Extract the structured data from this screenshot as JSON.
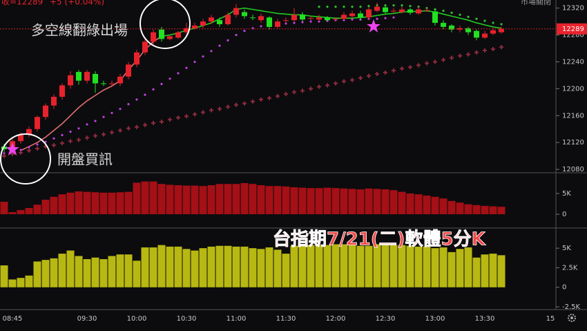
{
  "chart_data": [
    {
      "type": "candlestick",
      "quote": "收=12289",
      "change": "+5 (+0.04%)",
      "status": "市場關閉",
      "up_color": "#e8222c",
      "down_color": "#22e022",
      "last_price": 12289,
      "last_price_color": "#e8222c",
      "annotations": [
        "多空線翻綠出場",
        "開盤買訊"
      ],
      "ylim": [
        12075,
        12332
      ],
      "yticks": [
        12080,
        12120,
        12160,
        12200,
        12240,
        12280,
        12320
      ],
      "open": [
        12114,
        12112,
        12122,
        12132,
        12140,
        12158,
        12175,
        12188,
        12205,
        12225,
        12212,
        12222,
        12208,
        12207,
        12208,
        12218,
        12236,
        12254,
        12270,
        12288,
        12274,
        12276,
        12284,
        12290,
        12294,
        12300,
        12302,
        12296,
        12310,
        12314,
        12306,
        12302,
        12306,
        12292,
        12301,
        12302,
        12310,
        12304,
        12303,
        12306,
        12303,
        12304,
        12308,
        12312,
        12306,
        12316,
        12321,
        12315,
        12314,
        12318,
        12312,
        12316,
        12315,
        12298,
        12294,
        12288,
        12290,
        12286,
        12276,
        12282,
        12284
      ],
      "high": [
        12118,
        12126,
        12135,
        12144,
        12160,
        12178,
        12192,
        12208,
        12226,
        12228,
        12228,
        12226,
        12212,
        12212,
        12222,
        12240,
        12258,
        12274,
        12288,
        12292,
        12280,
        12286,
        12298,
        12298,
        12304,
        12310,
        12306,
        12314,
        12326,
        12318,
        12310,
        12312,
        12308,
        12304,
        12306,
        12320,
        12314,
        12308,
        12310,
        12308,
        12306,
        12314,
        12316,
        12316,
        12322,
        12328,
        12324,
        12320,
        12322,
        12320,
        12322,
        12320,
        12318,
        12302,
        12296,
        12294,
        12292,
        12288,
        12286,
        12290,
        12292
      ],
      "low": [
        12106,
        12108,
        12118,
        12128,
        12136,
        12154,
        12170,
        12184,
        12200,
        12206,
        12208,
        12194,
        12204,
        12204,
        12204,
        12214,
        12232,
        12250,
        12266,
        12270,
        12272,
        12274,
        12280,
        12288,
        12290,
        12296,
        12292,
        12294,
        12306,
        12304,
        12302,
        12298,
        12288,
        12290,
        12298,
        12300,
        12300,
        12302,
        12300,
        12300,
        12300,
        12302,
        12304,
        12302,
        12302,
        12314,
        12312,
        12312,
        12312,
        12310,
        12310,
        12314,
        12294,
        12288,
        12284,
        12284,
        12280,
        12272,
        12274,
        12280,
        12282
      ],
      "close": [
        12110,
        12122,
        12132,
        12140,
        12158,
        12175,
        12188,
        12205,
        12220,
        12212,
        12225,
        12208,
        12207,
        12208,
        12218,
        12236,
        12254,
        12270,
        12284,
        12274,
        12278,
        12284,
        12290,
        12294,
        12300,
        12306,
        12296,
        12310,
        12320,
        12308,
        12305,
        12308,
        12292,
        12300,
        12302,
        12310,
        12303,
        12305,
        12306,
        12302,
        12304,
        12310,
        12312,
        12306,
        12318,
        12322,
        12314,
        12316,
        12318,
        12313,
        12318,
        12317,
        12298,
        12292,
        12288,
        12290,
        12284,
        12276,
        12282,
        12287,
        12289
      ],
      "series": [
        {
          "style": "line",
          "color": "#e07070",
          "values": [
            null,
            null,
            12108,
            12114,
            12120,
            12128,
            12138,
            12148,
            12160,
            12172,
            12182,
            12190,
            12198,
            12204,
            12212,
            12228,
            12242,
            12258,
            12270,
            12278,
            null,
            null,
            null,
            null,
            null,
            null,
            null,
            null,
            null,
            null,
            null,
            null,
            null,
            null,
            null,
            null,
            null,
            null,
            null,
            null,
            null,
            null,
            null,
            null,
            null,
            null,
            null,
            null,
            null,
            null,
            null,
            null,
            null,
            null,
            null,
            null,
            null,
            null,
            null,
            null,
            null
          ]
        },
        {
          "style": "line",
          "color": "#22cc22",
          "values": [
            null,
            null,
            null,
            null,
            null,
            null,
            null,
            null,
            null,
            null,
            null,
            null,
            null,
            null,
            null,
            null,
            null,
            null,
            null,
            12278,
            12280,
            12283,
            12287,
            12290,
            12294,
            12298,
            12304,
            12310,
            12318,
            12320,
            12318,
            12316,
            12314,
            12312,
            12311,
            12310,
            12310,
            12308,
            12307,
            12306,
            12305,
            12305,
            12305,
            12306,
            12307,
            12309,
            12311,
            12312,
            12314,
            12315,
            12315,
            12316,
            12314,
            12311,
            12308,
            12305,
            12302,
            12298,
            12295,
            12292,
            12290
          ]
        },
        {
          "style": "dots",
          "color": "#c040e0",
          "values": [
            12104,
            12106,
            12109,
            12113,
            12117,
            12121,
            12126,
            12131,
            12136,
            12141,
            12147,
            12152,
            12158,
            12164,
            12170,
            12177,
            12184,
            12191,
            12199,
            12207,
            12215,
            12223,
            12231,
            12240,
            12248,
            12256,
            12264,
            12272,
            12280,
            12286,
            12290,
            12293,
            12295,
            12296,
            12297,
            12298,
            12299,
            12300,
            12300,
            12301,
            12302,
            12302,
            12303,
            12303,
            12304,
            12304,
            12305,
            12306,
            null,
            null,
            null,
            null,
            null,
            null,
            null,
            null,
            null,
            null,
            null,
            null,
            null
          ]
        },
        {
          "style": "dots",
          "color": "#33c033",
          "values": [
            null,
            null,
            null,
            null,
            null,
            null,
            null,
            null,
            null,
            null,
            null,
            null,
            null,
            null,
            null,
            null,
            null,
            null,
            null,
            null,
            null,
            null,
            null,
            null,
            null,
            null,
            null,
            null,
            null,
            null,
            null,
            null,
            null,
            null,
            null,
            null,
            null,
            null,
            12322,
            12322,
            12322,
            12322,
            12322,
            12322,
            12323,
            12324,
            12324,
            12324,
            12324,
            12323,
            12322,
            12320,
            12318,
            12316,
            12313,
            12310,
            12307,
            12304,
            12301,
            12298,
            12296
          ]
        },
        {
          "style": "crosses",
          "color": "#8a2a3c",
          "values": [
            12100,
            12103,
            12105,
            12108,
            12111,
            12114,
            12116,
            12119,
            12122,
            12124,
            12127,
            12130,
            12132,
            12135,
            12138,
            12141,
            12143,
            12146,
            12149,
            12151,
            12154,
            12157,
            12159,
            12162,
            12165,
            12168,
            12170,
            12173,
            12176,
            12178,
            12181,
            12184,
            12186,
            12189,
            12192,
            12195,
            12197,
            12200,
            12203,
            12205,
            12208,
            12211,
            12213,
            12216,
            12219,
            12222,
            12224,
            12227,
            12230,
            12232,
            12235,
            12238,
            12240,
            12243,
            12246,
            12249,
            12251,
            12254,
            12257,
            12259,
            12262
          ]
        }
      ]
    },
    {
      "type": "bar",
      "color": "#a50f16",
      "ylim": [
        -3000,
        10000
      ],
      "yticks": [
        0,
        {
          "value": 5000,
          "label": "5K"
        }
      ],
      "values": [
        3000,
        500,
        1000,
        1500,
        2300,
        3500,
        4200,
        4800,
        5200,
        5500,
        5400,
        5300,
        5200,
        5200,
        5300,
        5400,
        7600,
        7900,
        7900,
        7300,
        7100,
        7000,
        6900,
        6900,
        6800,
        7000,
        7300,
        7300,
        7300,
        7500,
        7300,
        7000,
        6800,
        6800,
        6700,
        6500,
        6400,
        6300,
        6300,
        6400,
        6300,
        6200,
        6100,
        6000,
        6200,
        6100,
        6000,
        5800,
        5400,
        5000,
        4800,
        4500,
        4200,
        3800,
        3200,
        2800,
        2400,
        2200,
        2000,
        1900,
        1800
      ]
    },
    {
      "type": "bar",
      "color": "#b8b812",
      "ylim": [
        -2850,
        7400
      ],
      "annotation": "台指期7/21(二)軟體5分K",
      "yticks": [
        {
          "value": -2500,
          "label": "-2.5K"
        },
        0,
        {
          "value": 2500,
          "label": "2.5K"
        },
        {
          "value": 5000,
          "label": "5K"
        }
      ],
      "categories": [
        null,
        "08:45",
        null,
        null,
        null,
        null,
        null,
        null,
        null,
        null,
        "09:30",
        null,
        null,
        null,
        null,
        null,
        "10:00",
        null,
        null,
        null,
        null,
        null,
        "10:30",
        null,
        null,
        null,
        null,
        null,
        "11:00",
        null,
        null,
        null,
        null,
        null,
        "11:30",
        null,
        null,
        null,
        null,
        null,
        "12:00",
        null,
        null,
        null,
        null,
        null,
        "12:30",
        null,
        null,
        null,
        null,
        null,
        "13:00",
        null,
        null,
        null,
        null,
        null,
        "13:30",
        null,
        null
      ],
      "x_edge_label": "15",
      "values": [
        2800,
        1000,
        1200,
        1500,
        3300,
        3500,
        3700,
        4300,
        4700,
        4000,
        3600,
        3800,
        3600,
        4000,
        4200,
        4200,
        3400,
        5100,
        5100,
        5400,
        5200,
        5200,
        4900,
        4700,
        5000,
        5200,
        5300,
        5300,
        5200,
        5200,
        5000,
        4900,
        5100,
        4800,
        4300,
        5300,
        5400,
        5400,
        5400,
        5400,
        5500,
        5500,
        5400,
        5300,
        5300,
        5500,
        5400,
        5400,
        5400,
        5300,
        5200,
        5200,
        5000,
        5100,
        4500,
        4900,
        5100,
        3800,
        4200,
        4300,
        4100
      ]
    }
  ]
}
